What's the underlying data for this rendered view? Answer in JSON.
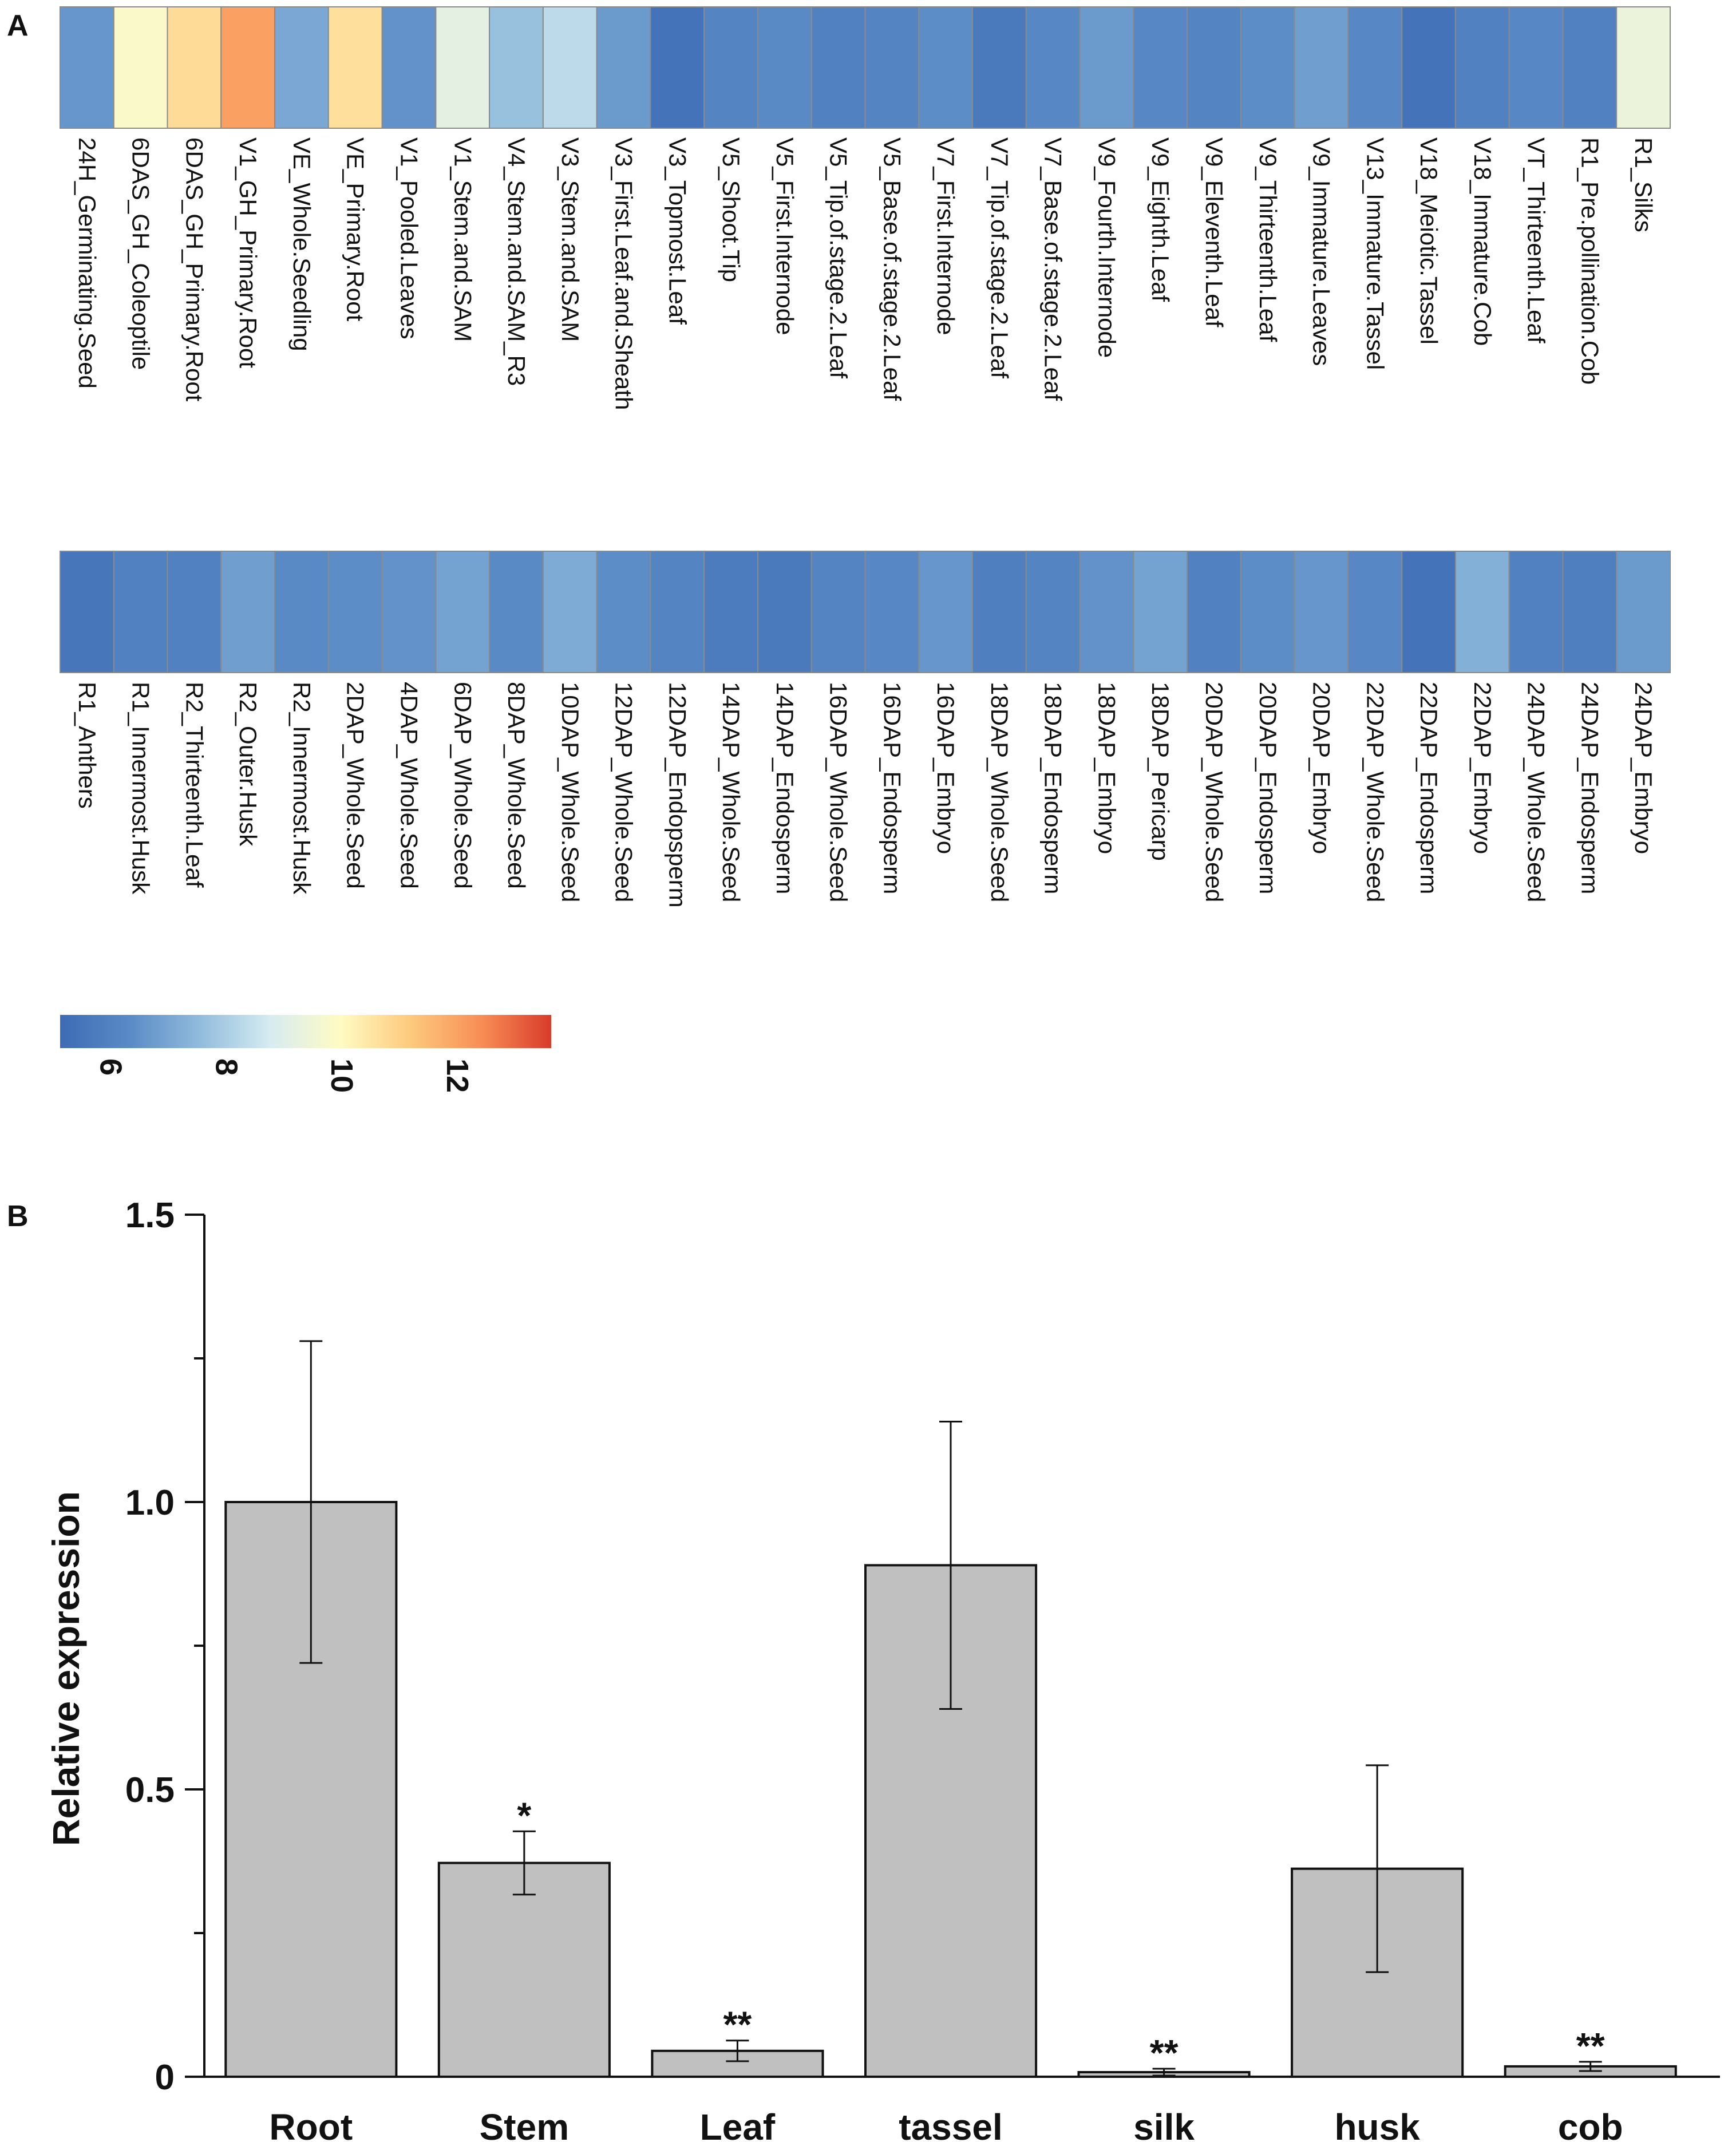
{
  "panels": {
    "a_label": "A",
    "b_label": "B"
  },
  "chart_data": [
    {
      "type": "heatmap",
      "title": "",
      "colormap": {
        "min": 5,
        "max": 13,
        "stops": [
          "#3e6bb5",
          "#5a8bc6",
          "#91bcdc",
          "#d7ecf2",
          "#fffbc2",
          "#fdc97d",
          "#f88e55",
          "#d93b2b"
        ],
        "ticks": [
          6,
          8,
          10,
          12
        ],
        "tick_labels": [
          "6",
          "8",
          "10",
          "12"
        ]
      },
      "rows": [
        {
          "cells": [
            {
              "label": "24H_Germinating.Seed",
              "value": 6.4
            },
            {
              "label": "6DAS_GH_Coleoptile",
              "value": 9.4
            },
            {
              "label": "6DAS_GH_Primary.Root",
              "value": 10.3
            },
            {
              "label": "V1_GH_Primary.Root",
              "value": 11.5
            },
            {
              "label": "VE_Whole.Seedling",
              "value": 6.8
            },
            {
              "label": "VE_Primary.Root",
              "value": 10.2
            },
            {
              "label": "V1_Pooled.Leaves",
              "value": 6.3
            },
            {
              "label": "V1_Stem.and.SAM",
              "value": 8.8
            },
            {
              "label": "V4_Stem.and.SAM_R3",
              "value": 7.4
            },
            {
              "label": "V3_Stem.and.SAM",
              "value": 8.0
            },
            {
              "label": "V3_First.Leaf.and.Sheath",
              "value": 6.5
            },
            {
              "label": "V3_Topmost.Leaf",
              "value": 5.3
            },
            {
              "label": "V5_Shoot.Tip",
              "value": 5.9
            },
            {
              "label": "V5_First.Internode",
              "value": 6.1
            },
            {
              "label": "V5_Tip.of.stage.2.Leaf",
              "value": 5.8
            },
            {
              "label": "V5_Base.of.stage.2.Leaf",
              "value": 5.9
            },
            {
              "label": "V7_First.Internode",
              "value": 6.2
            },
            {
              "label": "V7_Tip.of.stage.2.Leaf",
              "value": 5.5
            },
            {
              "label": "V7_Base.of.stage.2.Leaf",
              "value": 6.0
            },
            {
              "label": "V9_Fourth.Internode",
              "value": 6.5
            },
            {
              "label": "V9_Eighth.Leaf",
              "value": 6.0
            },
            {
              "label": "V9_Eleventh.Leaf",
              "value": 5.9
            },
            {
              "label": "V9_Thirteenth.Leaf",
              "value": 6.2
            },
            {
              "label": "V9_Immature.Leaves",
              "value": 6.6
            },
            {
              "label": "V13_Immature.Tassel",
              "value": 6.0
            },
            {
              "label": "V18_Meiotic.Tassel",
              "value": 5.3
            },
            {
              "label": "V18_Immature.Cob",
              "value": 5.8
            },
            {
              "label": "VT_Thirteenth.Leaf",
              "value": 6.0
            },
            {
              "label": "R1_Pre.pollination.Cob",
              "value": 5.8
            },
            {
              "label": "R1_Silks",
              "value": 9.0
            }
          ]
        },
        {
          "cells": [
            {
              "label": "R1_Anthers",
              "value": 5.4
            },
            {
              "label": "R1_Innermost.Husk",
              "value": 5.8
            },
            {
              "label": "R2_Thirteenth.Leaf",
              "value": 5.8
            },
            {
              "label": "R2_Outer.Husk",
              "value": 6.6
            },
            {
              "label": "R2_Innermost.Husk",
              "value": 6.1
            },
            {
              "label": "2DAP_Whole.Seed",
              "value": 6.2
            },
            {
              "label": "4DAP_Whole.Seed",
              "value": 6.3
            },
            {
              "label": "6DAP_Whole.Seed",
              "value": 6.7
            },
            {
              "label": "8DAP_Whole.Seed",
              "value": 6.1
            },
            {
              "label": "10DAP_Whole.Seed",
              "value": 6.9
            },
            {
              "label": "12DAP_Whole.Seed",
              "value": 6.2
            },
            {
              "label": "12DAP_Endopsperm",
              "value": 5.9
            },
            {
              "label": "14DAP_Whole.Seed",
              "value": 5.6
            },
            {
              "label": "14DAP_Endosperm",
              "value": 5.5
            },
            {
              "label": "16DAP_Whole.Seed",
              "value": 5.9
            },
            {
              "label": "16DAP_Endosperm",
              "value": 6.0
            },
            {
              "label": "16DAP_Embryo",
              "value": 6.4
            },
            {
              "label": "18DAP_Whole.Seed",
              "value": 5.7
            },
            {
              "label": "18DAP_Endosperm",
              "value": 5.9
            },
            {
              "label": "18DAP_Embryo",
              "value": 6.3
            },
            {
              "label": "18DAP_Pericarp",
              "value": 6.7
            },
            {
              "label": "20DAP_Whole.Seed",
              "value": 5.8
            },
            {
              "label": "20DAP_Endosperm",
              "value": 6.2
            },
            {
              "label": "20DAP_Embryo",
              "value": 6.4
            },
            {
              "label": "22DAP_Whole.Seed",
              "value": 6.0
            },
            {
              "label": "22DAP_Endosperm",
              "value": 5.3
            },
            {
              "label": "22DAP_Embryo",
              "value": 7.0
            },
            {
              "label": "24DAP_Whole.Seed",
              "value": 5.8
            },
            {
              "label": "24DAP_Endosperm",
              "value": 5.7
            },
            {
              "label": "24DAP_Embryo",
              "value": 6.5
            }
          ]
        }
      ]
    },
    {
      "type": "bar",
      "title": "",
      "xlabel": "",
      "ylabel": "Relative expression",
      "ylim": [
        0,
        1.5
      ],
      "yticks": [
        0,
        0.5,
        1.0,
        1.5
      ],
      "ytick_labels": [
        "0",
        "0.5",
        "1.0",
        "1.5"
      ],
      "bar_color": "#c0c0c0",
      "categories": [
        "Root",
        "Stem",
        "Leaf",
        "tassel",
        "silk",
        "husk",
        "cob"
      ],
      "values": [
        1.0,
        0.372,
        0.045,
        0.89,
        0.008,
        0.362,
        0.018
      ],
      "errors": [
        0.28,
        0.055,
        0.018,
        0.25,
        0.006,
        0.18,
        0.008
      ],
      "significance": [
        "",
        "*",
        "**",
        "",
        "**",
        "",
        "**"
      ]
    }
  ]
}
